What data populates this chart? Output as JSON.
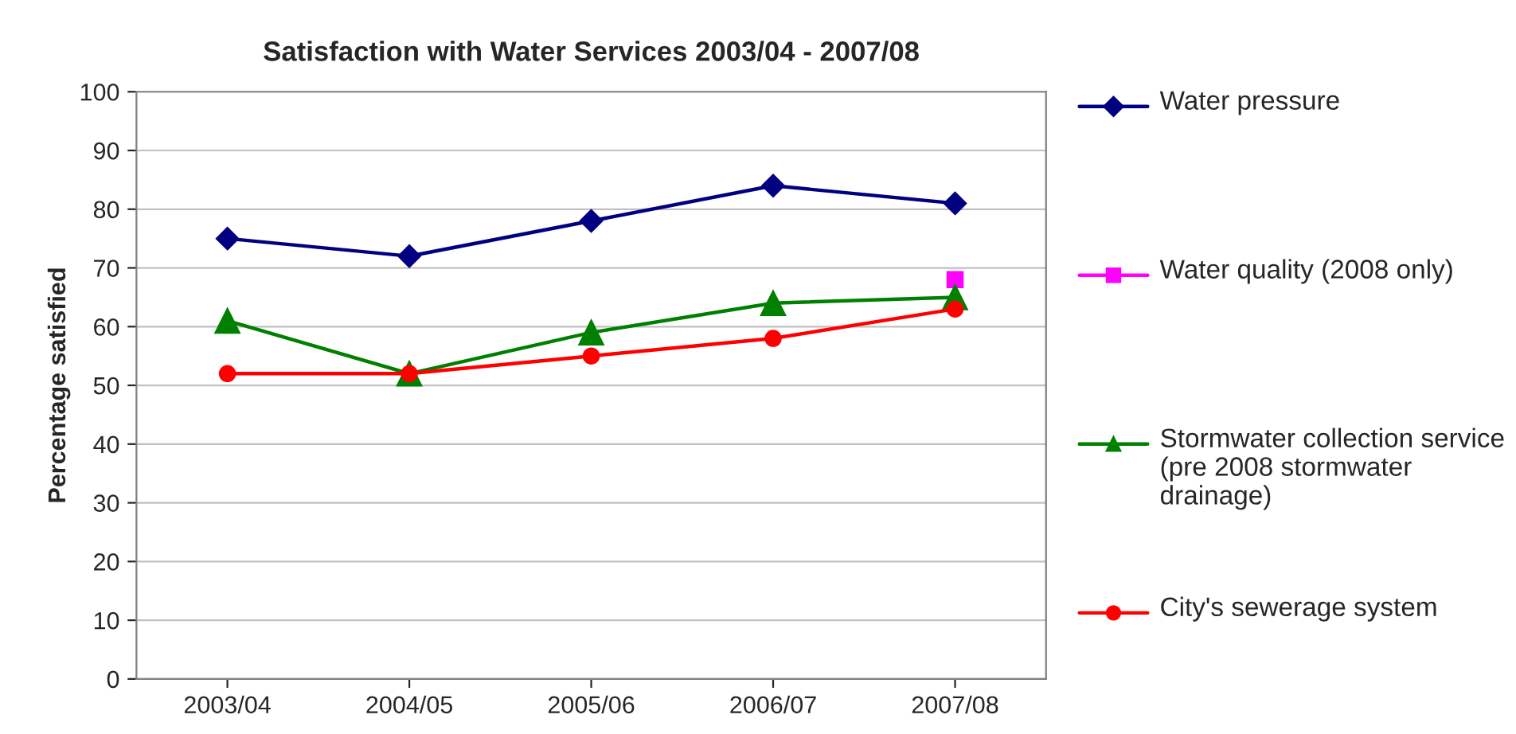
{
  "chart_data": {
    "type": "line",
    "title": "Satisfaction with Water Services 2003/04 - 2007/08",
    "ylabel": "Percentage satisfied",
    "categories": [
      "2003/04",
      "2004/05",
      "2005/06",
      "2006/07",
      "2007/08"
    ],
    "series": [
      {
        "name": "Water pressure",
        "color": "#000080",
        "marker": "diamond",
        "values": [
          75,
          72,
          78,
          84,
          81
        ]
      },
      {
        "name": "Water quality (2008 only)",
        "color": "#ff00ff",
        "marker": "square",
        "values": [
          null,
          null,
          null,
          null,
          68
        ]
      },
      {
        "name": "Stormwater collection service (pre 2008 stormwater drainage)",
        "color": "#008000",
        "marker": "triangle",
        "values": [
          61,
          52,
          59,
          64,
          65
        ]
      },
      {
        "name": "City's sewerage system",
        "color": "#ff0000",
        "marker": "circle",
        "values": [
          52,
          52,
          55,
          58,
          63
        ]
      }
    ],
    "ylim": [
      0,
      100
    ],
    "yticks": [
      0,
      10,
      20,
      30,
      40,
      50,
      60,
      70,
      80,
      90,
      100
    ],
    "grid": "y",
    "legend": "right",
    "line_style": "solid"
  }
}
